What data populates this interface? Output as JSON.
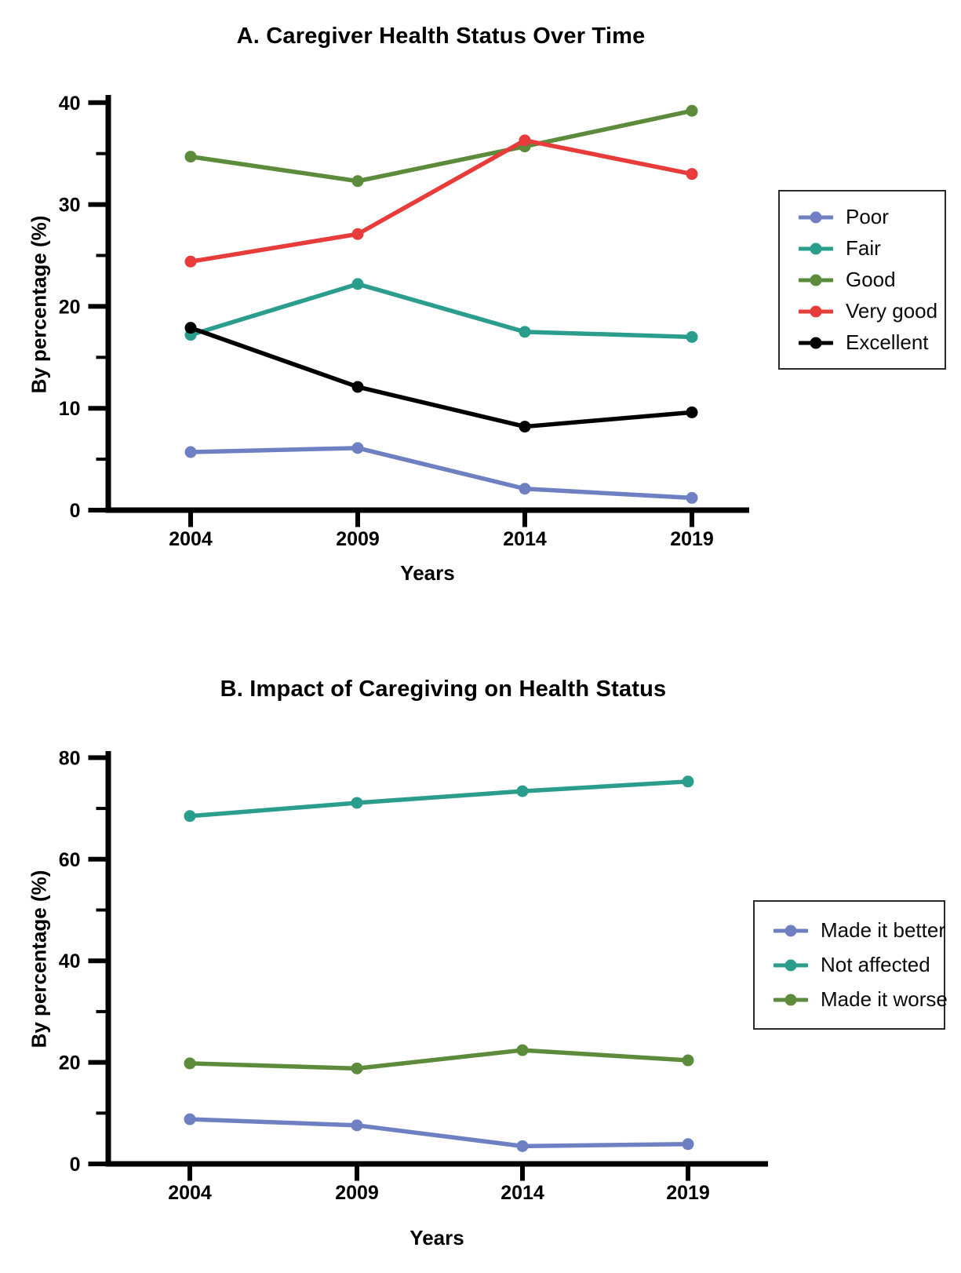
{
  "page": {
    "background": "#ffffff"
  },
  "chart_data": [
    {
      "type": "line",
      "title": "A. Caregiver Health Status Over Time",
      "xlabel": "Years",
      "ylabel": "By percentage (%)",
      "x": [
        "2004",
        "2009",
        "2014",
        "2019"
      ],
      "ylim": [
        0,
        40
      ],
      "yticks_major": [
        0,
        10,
        20,
        30,
        40
      ],
      "yticks_minor": [
        5,
        15,
        25,
        35
      ],
      "grid": false,
      "legend_position": "right",
      "series": [
        {
          "name": "Poor",
          "color": "#6E80C2",
          "values": [
            5.7,
            6.1,
            2.1,
            1.2
          ]
        },
        {
          "name": "Fair",
          "color": "#2A9D8C",
          "values": [
            17.2,
            22.2,
            17.5,
            17.0
          ]
        },
        {
          "name": "Good",
          "color": "#5C8B3C",
          "values": [
            34.7,
            32.3,
            35.7,
            39.2
          ]
        },
        {
          "name": "Very good",
          "color": "#E83C3B",
          "values": [
            24.4,
            27.1,
            36.3,
            33.0
          ]
        },
        {
          "name": "Excellent",
          "color": "#000000",
          "values": [
            17.9,
            12.1,
            8.2,
            9.6
          ]
        }
      ]
    },
    {
      "type": "line",
      "title": "B. Impact of Caregiving on Health Status",
      "xlabel": "Years",
      "ylabel": "By percentage (%)",
      "x": [
        "2004",
        "2009",
        "2014",
        "2019"
      ],
      "ylim": [
        0,
        80
      ],
      "yticks_major": [
        0,
        20,
        40,
        60,
        80
      ],
      "yticks_minor": [
        10,
        30,
        50,
        70
      ],
      "grid": false,
      "legend_position": "right",
      "series": [
        {
          "name": "Made it better",
          "color": "#6E80C2",
          "values": [
            8.8,
            7.6,
            3.5,
            3.9
          ]
        },
        {
          "name": "Not affected",
          "color": "#2A9D8C",
          "values": [
            68.5,
            71.1,
            73.4,
            75.3
          ]
        },
        {
          "name": "Made it worse",
          "color": "#5C8B3C",
          "values": [
            19.8,
            18.8,
            22.4,
            20.4
          ]
        }
      ]
    }
  ]
}
